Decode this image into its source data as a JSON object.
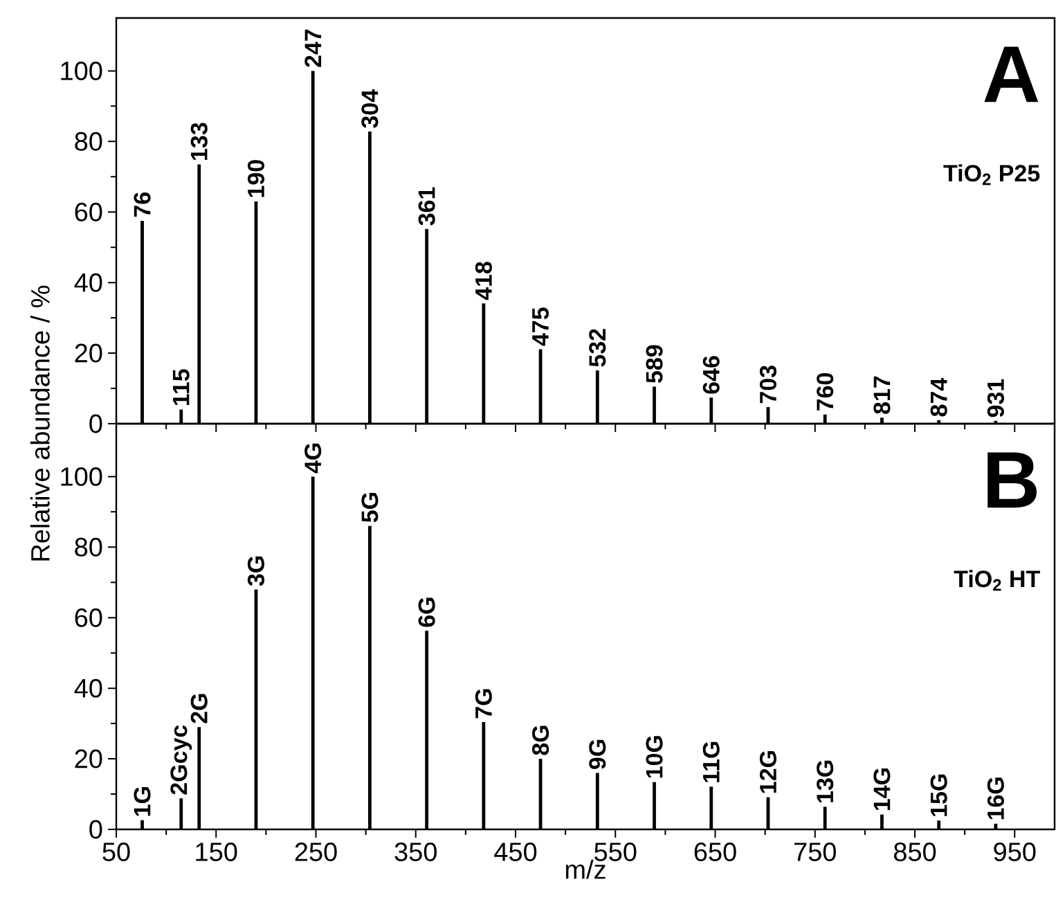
{
  "chart_data": [
    {
      "type": "bar",
      "title": "A",
      "subtitle": "TiO$_{2}$ P25",
      "color": "#000000",
      "x": [
        76,
        115,
        133,
        190,
        247,
        304,
        361,
        418,
        475,
        532,
        589,
        646,
        703,
        760,
        817,
        874,
        931
      ],
      "values": [
        57.5,
        4,
        73.5,
        63,
        100,
        82.8,
        55.2,
        34.1,
        21.1,
        15.1,
        10.5,
        7.4,
        4.7,
        2.6,
        1.7,
        1,
        0.8
      ],
      "annotations": [
        {
          "text": "76",
          "x": 76,
          "y": 57.5
        },
        {
          "text": "115",
          "x": 115,
          "y": 4
        },
        {
          "text": "133",
          "x": 133,
          "y": 73.5
        },
        {
          "text": "190",
          "x": 190,
          "y": 63
        },
        {
          "text": "247",
          "x": 247,
          "y": 100
        },
        {
          "text": "304",
          "x": 304,
          "y": 82.8
        },
        {
          "text": "361",
          "x": 361,
          "y": 55.2
        },
        {
          "text": "418",
          "x": 418,
          "y": 34.1
        },
        {
          "text": "475",
          "x": 475,
          "y": 21.1
        },
        {
          "text": "532",
          "x": 532,
          "y": 15.1
        },
        {
          "text": "589",
          "x": 589,
          "y": 10.5
        },
        {
          "text": "646",
          "x": 646,
          "y": 7.4
        },
        {
          "text": "703",
          "x": 703,
          "y": 4.7
        },
        {
          "text": "760",
          "x": 760,
          "y": 2.6
        },
        {
          "text": "817",
          "x": 817,
          "y": 1.7
        },
        {
          "text": "874",
          "x": 874,
          "y": 1
        },
        {
          "text": "931",
          "x": 931,
          "y": 0.8
        }
      ],
      "xlim": [
        50,
        990
      ],
      "xticks": [
        50,
        150,
        250,
        350,
        450,
        550,
        650,
        750,
        850,
        950
      ],
      "ylim": [
        0,
        115
      ],
      "yticks": [
        0,
        20,
        40,
        60,
        80,
        100
      ],
      "tick_labels": "y"
    },
    {
      "type": "bar",
      "title": "B",
      "subtitle": "TiO$_{2}$ HT",
      "color": "#000000",
      "xlabel": "m/z",
      "ylabel": "Relative abundance / %",
      "x": [
        76,
        115,
        133,
        190,
        247,
        304,
        361,
        418,
        475,
        532,
        589,
        646,
        703,
        760,
        817,
        874,
        931
      ],
      "values": [
        2.6,
        8.8,
        29,
        68,
        100,
        86,
        56.3,
        30.4,
        20,
        16,
        13.4,
        12.1,
        9.1,
        6.4,
        4.2,
        2.5,
        1.6
      ],
      "annotations": [
        {
          "text": "1G",
          "x": 76,
          "y": 2.6
        },
        {
          "text": "2Gcyc",
          "x": 115,
          "y": 8.8
        },
        {
          "text": "2G",
          "x": 133,
          "y": 29
        },
        {
          "text": "3G",
          "x": 190,
          "y": 68
        },
        {
          "text": "4G",
          "x": 247,
          "y": 100
        },
        {
          "text": "5G",
          "x": 304,
          "y": 86
        },
        {
          "text": "6G",
          "x": 361,
          "y": 56.3
        },
        {
          "text": "7G",
          "x": 418,
          "y": 30.4
        },
        {
          "text": "8G",
          "x": 475,
          "y": 20
        },
        {
          "text": "9G",
          "x": 532,
          "y": 16
        },
        {
          "text": "10G",
          "x": 589,
          "y": 13.4
        },
        {
          "text": "11G",
          "x": 646,
          "y": 12.1
        },
        {
          "text": "12G",
          "x": 703,
          "y": 9.1
        },
        {
          "text": "13G",
          "x": 760,
          "y": 6.4
        },
        {
          "text": "14G",
          "x": 817,
          "y": 4.2
        },
        {
          "text": "15G",
          "x": 874,
          "y": 2.5
        },
        {
          "text": "16G",
          "x": 931,
          "y": 1.6
        }
      ],
      "xlim": [
        50,
        990
      ],
      "xticks": [
        50,
        150,
        250,
        350,
        450,
        550,
        650,
        750,
        850,
        950
      ],
      "ylim": [
        0,
        115
      ],
      "yticks": [
        0,
        20,
        40,
        60,
        80,
        100
      ]
    }
  ]
}
